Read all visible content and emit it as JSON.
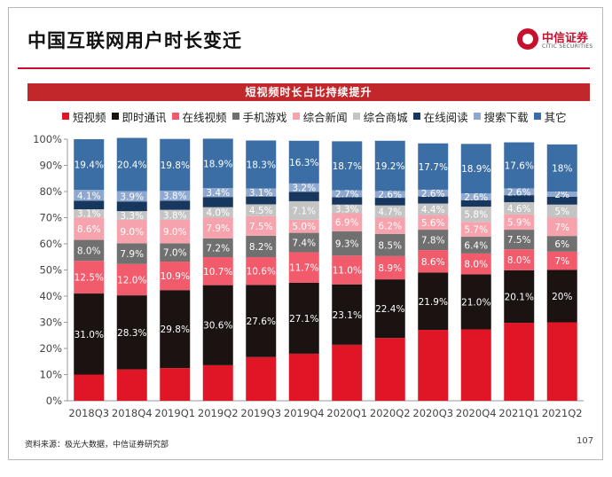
{
  "slide": {
    "title": "中国互联网用户时长变迁",
    "banner": "短视频时长占比持续提升",
    "logo_main": "中信证券",
    "logo_sub": "CITIC SECURITIES",
    "source": "资料来源：极光大数据，中信证券研究部",
    "page_number": "107"
  },
  "chart_data": {
    "type": "bar",
    "stacked": true,
    "normalized": true,
    "categories": [
      "2018Q3",
      "2018Q4",
      "2019Q1",
      "2019Q2",
      "2019Q3",
      "2019Q4",
      "2020Q1",
      "2020Q2",
      "2020Q3",
      "2020Q4",
      "2021Q1",
      "2021Q2"
    ],
    "ylim": [
      0,
      100
    ],
    "yticks": [
      "0%",
      "10%",
      "20%",
      "30%",
      "40%",
      "50%",
      "60%",
      "70%",
      "80%",
      "90%",
      "100%"
    ],
    "grid": false,
    "legend_position": "top",
    "series": [
      {
        "name": "短视频",
        "color": "#e01525",
        "values": [
          10.0,
          12.0,
          12.5,
          13.6,
          16.7,
          18.0,
          21.4,
          24.0,
          27.1,
          27.3,
          29.8,
          30.0
        ],
        "labels": [
          "",
          "",
          "",
          "",
          "",
          "",
          "",
          "",
          "",
          "",
          "",
          ""
        ]
      },
      {
        "name": "即时通讯",
        "color": "#1a1311",
        "values": [
          31.0,
          28.3,
          29.8,
          30.6,
          27.6,
          27.1,
          23.1,
          22.4,
          21.9,
          21.0,
          20.1,
          20.0
        ],
        "labels": [
          "31.0%",
          "28.3%",
          "29.8%",
          "30.6%",
          "27.6%",
          "27.1%",
          "23.1%",
          "22.4%",
          "21.9%",
          "21.0%",
          "20.1%",
          "20%"
        ]
      },
      {
        "name": "在线视频",
        "color": "#f15b6c",
        "values": [
          12.5,
          12.0,
          10.9,
          10.7,
          10.6,
          11.7,
          11.0,
          8.9,
          8.6,
          8.0,
          8.0,
          7.0
        ],
        "labels": [
          "12.5%",
          "12.0%",
          "10.9%",
          "10.7%",
          "10.6%",
          "11.7%",
          "11.0%",
          "8.9%",
          "8.6%",
          "8.0%",
          "8.0%",
          "7%"
        ]
      },
      {
        "name": "手机游戏",
        "color": "#707070",
        "values": [
          8.0,
          7.9,
          7.0,
          7.2,
          8.2,
          7.4,
          9.3,
          8.5,
          7.8,
          6.4,
          7.5,
          6.0
        ],
        "labels": [
          "8.0%",
          "7.9%",
          "7.0%",
          "7.2%",
          "8.2%",
          "7.4%",
          "9.3%",
          "8.5%",
          "7.8%",
          "6.4%",
          "7.5%",
          "6%"
        ]
      },
      {
        "name": "综合新闻",
        "color": "#f7a3ae",
        "values": [
          8.6,
          9.0,
          9.0,
          7.9,
          7.5,
          5.0,
          6.9,
          6.2,
          5.6,
          5.7,
          5.9,
          7.0
        ],
        "labels": [
          "8.6%",
          "9.0%",
          "9.0%",
          "7.9%",
          "7.5%",
          "5.0%",
          "6.9%",
          "6.2%",
          "5.6%",
          "5.7%",
          "5.9%",
          "7%"
        ]
      },
      {
        "name": "综合商城",
        "color": "#c4c4c4",
        "values": [
          3.1,
          3.3,
          3.8,
          4.0,
          4.5,
          7.1,
          3.3,
          4.7,
          4.4,
          5.8,
          4.6,
          5.0
        ],
        "labels": [
          "3.1%",
          "3.3%",
          "3.8%",
          "4.0%",
          "4.5%",
          "7.1%",
          "3.3%",
          "4.7%",
          "4.4%",
          "5.8%",
          "4.6%",
          "5%"
        ]
      },
      {
        "name": "在线阅读",
        "color": "#17375e",
        "values": [
          3.3,
          3.7,
          3.5,
          3.9,
          3.0,
          3.6,
          2.8,
          2.9,
          2.7,
          2.5,
          2.7,
          3.0
        ],
        "labels": [
          "",
          "",
          "",
          "",
          "",
          "",
          "",
          "",
          "",
          "",
          "",
          ""
        ]
      },
      {
        "name": "搜索下载",
        "color": "#8ea8cf",
        "values": [
          4.1,
          3.9,
          3.8,
          3.4,
          3.1,
          3.2,
          2.7,
          2.6,
          2.6,
          2.6,
          2.6,
          2.0
        ],
        "labels": [
          "4.1%",
          "3.9%",
          "3.8%",
          "3.4%",
          "3.1%",
          "3.2%",
          "2.7%",
          "2.6%",
          "2.6%",
          "2.6%",
          "2.6%",
          "2%"
        ]
      },
      {
        "name": "其它",
        "color": "#3b6ea5",
        "values": [
          19.4,
          20.4,
          19.8,
          18.9,
          18.3,
          16.3,
          18.7,
          19.2,
          17.7,
          18.9,
          17.6,
          18.0
        ],
        "labels": [
          "19.4%",
          "20.4%",
          "19.8%",
          "18.9%",
          "18.3%",
          "16.3%",
          "18.7%",
          "19.2%",
          "17.7%",
          "18.9%",
          "17.6%",
          "18%"
        ]
      }
    ]
  }
}
